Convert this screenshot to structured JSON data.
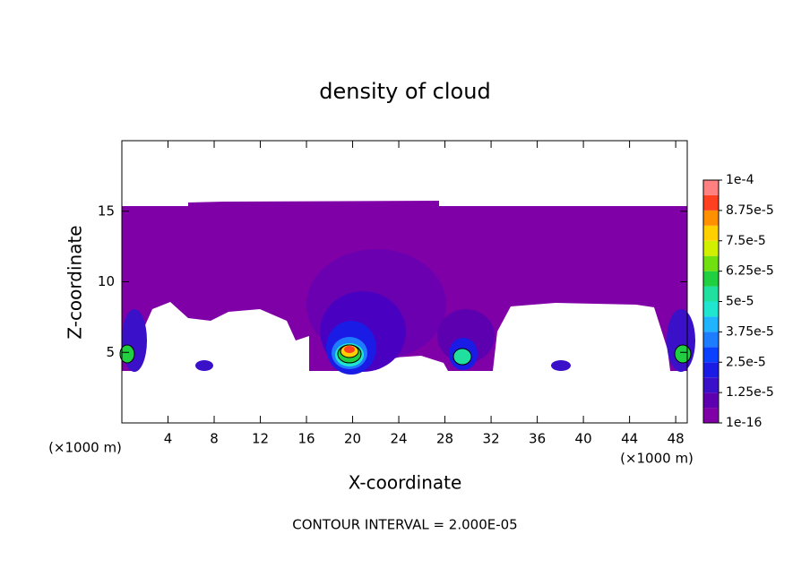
{
  "chart_data": {
    "type": "contour",
    "title": "density of cloud",
    "x_label": "X-coordinate",
    "y_label": "Z-coordinate",
    "x_unit_label": "(×1000 m)",
    "x_unit_label_right": "(×1000 m)",
    "footnote": "CONTOUR INTERVAL = 2.000E-05",
    "xlim": [
      0,
      49
    ],
    "ylim": [
      0,
      20
    ],
    "xticks": [
      4,
      8,
      12,
      16,
      20,
      24,
      28,
      32,
      36,
      40,
      44,
      48
    ],
    "yticks": [
      5,
      10,
      15
    ],
    "colorbar_ticks": [
      {
        "value": 1e-16,
        "label": "1e-16"
      },
      {
        "value": 1.25e-05,
        "label": "1.25e-5"
      },
      {
        "value": 2.5e-05,
        "label": "2.5e-5"
      },
      {
        "value": 3.75e-05,
        "label": "3.75e-5"
      },
      {
        "value": 5e-05,
        "label": "5e-5"
      },
      {
        "value": 6.25e-05,
        "label": "6.25e-5"
      },
      {
        "value": 7.5e-05,
        "label": "7.5e-5"
      },
      {
        "value": 8.75e-05,
        "label": "8.75e-5"
      },
      {
        "value": 0.0001,
        "label": "1e-4"
      }
    ],
    "colorbar_colors": [
      "#8000a8",
      "#5c00b0",
      "#3a10c8",
      "#1b1be6",
      "#0a40ff",
      "#1e7cff",
      "#20b4ff",
      "#20e6d0",
      "#20e0a0",
      "#20d040",
      "#70e010",
      "#d0f000",
      "#ffd000",
      "#ff9000",
      "#ff4020",
      "#ff8080"
    ]
  }
}
